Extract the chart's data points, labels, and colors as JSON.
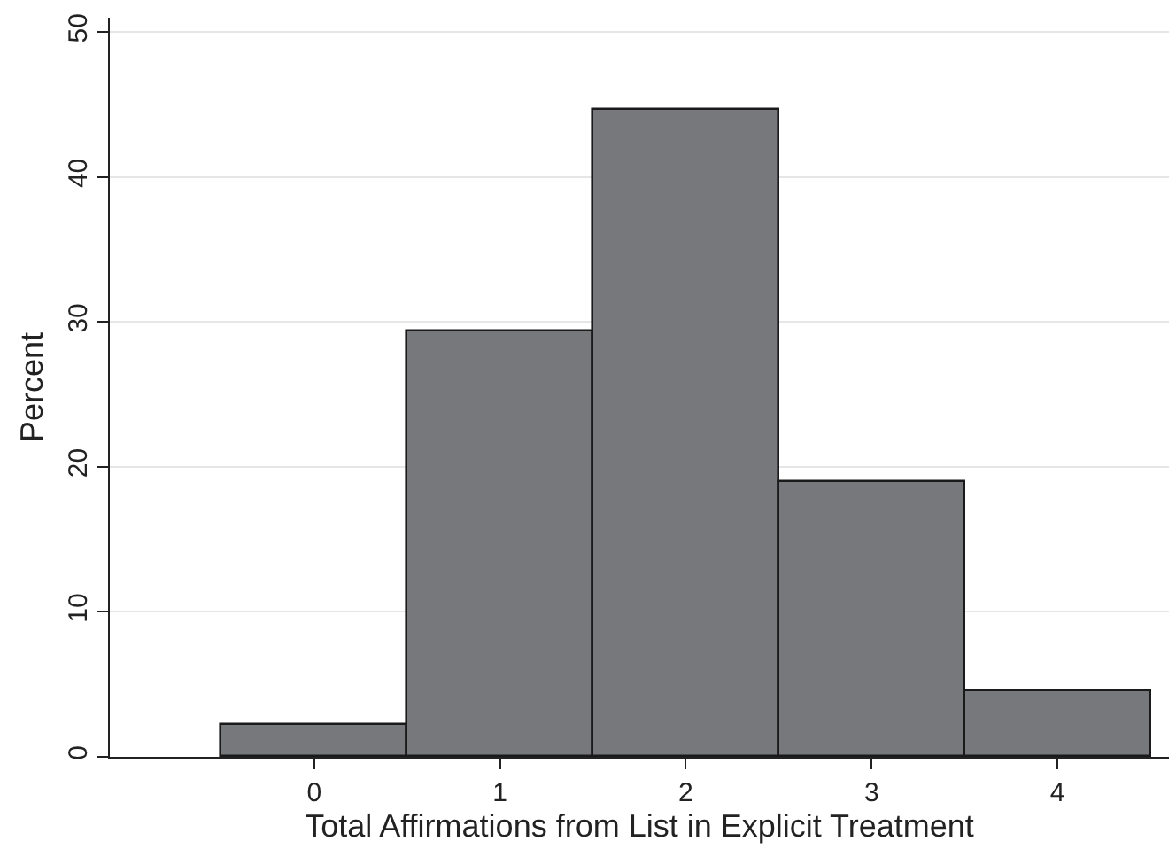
{
  "chart_data": {
    "type": "histogram",
    "xlabel": "Total Affirmations from List in Explicit Treatment",
    "ylabel": "Percent",
    "bins": [
      -0.5,
      0.5,
      1.5,
      2.5,
      3.5,
      4.5
    ],
    "values": [
      2.2,
      29.4,
      44.7,
      19.0,
      4.5
    ],
    "color": "#77787c",
    "xlim": [
      -1.1,
      4.6
    ],
    "xticks": [
      0,
      1,
      2,
      3,
      4
    ],
    "ylim": [
      0,
      51
    ],
    "yticks": [
      0,
      10,
      20,
      30,
      40,
      50
    ],
    "grid": "y"
  }
}
